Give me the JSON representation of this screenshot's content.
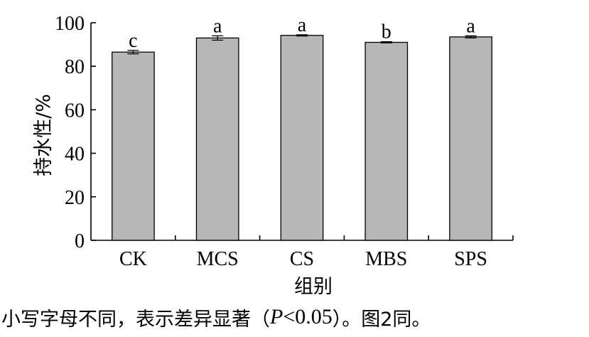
{
  "chart_data": {
    "type": "bar",
    "categories": [
      "CK",
      "MCS",
      "CS",
      "MBS",
      "SPS"
    ],
    "values": [
      86.5,
      93.0,
      94.2,
      91.0,
      93.5
    ],
    "errors": [
      0.8,
      1.0,
      0.3,
      0.3,
      0.5
    ],
    "significance_letters": [
      "c",
      "a",
      "a",
      "b",
      "a"
    ],
    "xlabel": "组别",
    "ylabel": "持水性/%",
    "ylim": [
      0,
      100
    ],
    "yticks": [
      0,
      20,
      40,
      60,
      80,
      100
    ],
    "grid": false,
    "legend": "none",
    "bar_color": "#b7b7b7",
    "edge_color": "#000000"
  },
  "caption": {
    "prefix": "小写字母不同，表示差异显著（",
    "p_symbol": "P",
    "p_rest": "<0.05",
    "suffix": "）。图2同。"
  }
}
